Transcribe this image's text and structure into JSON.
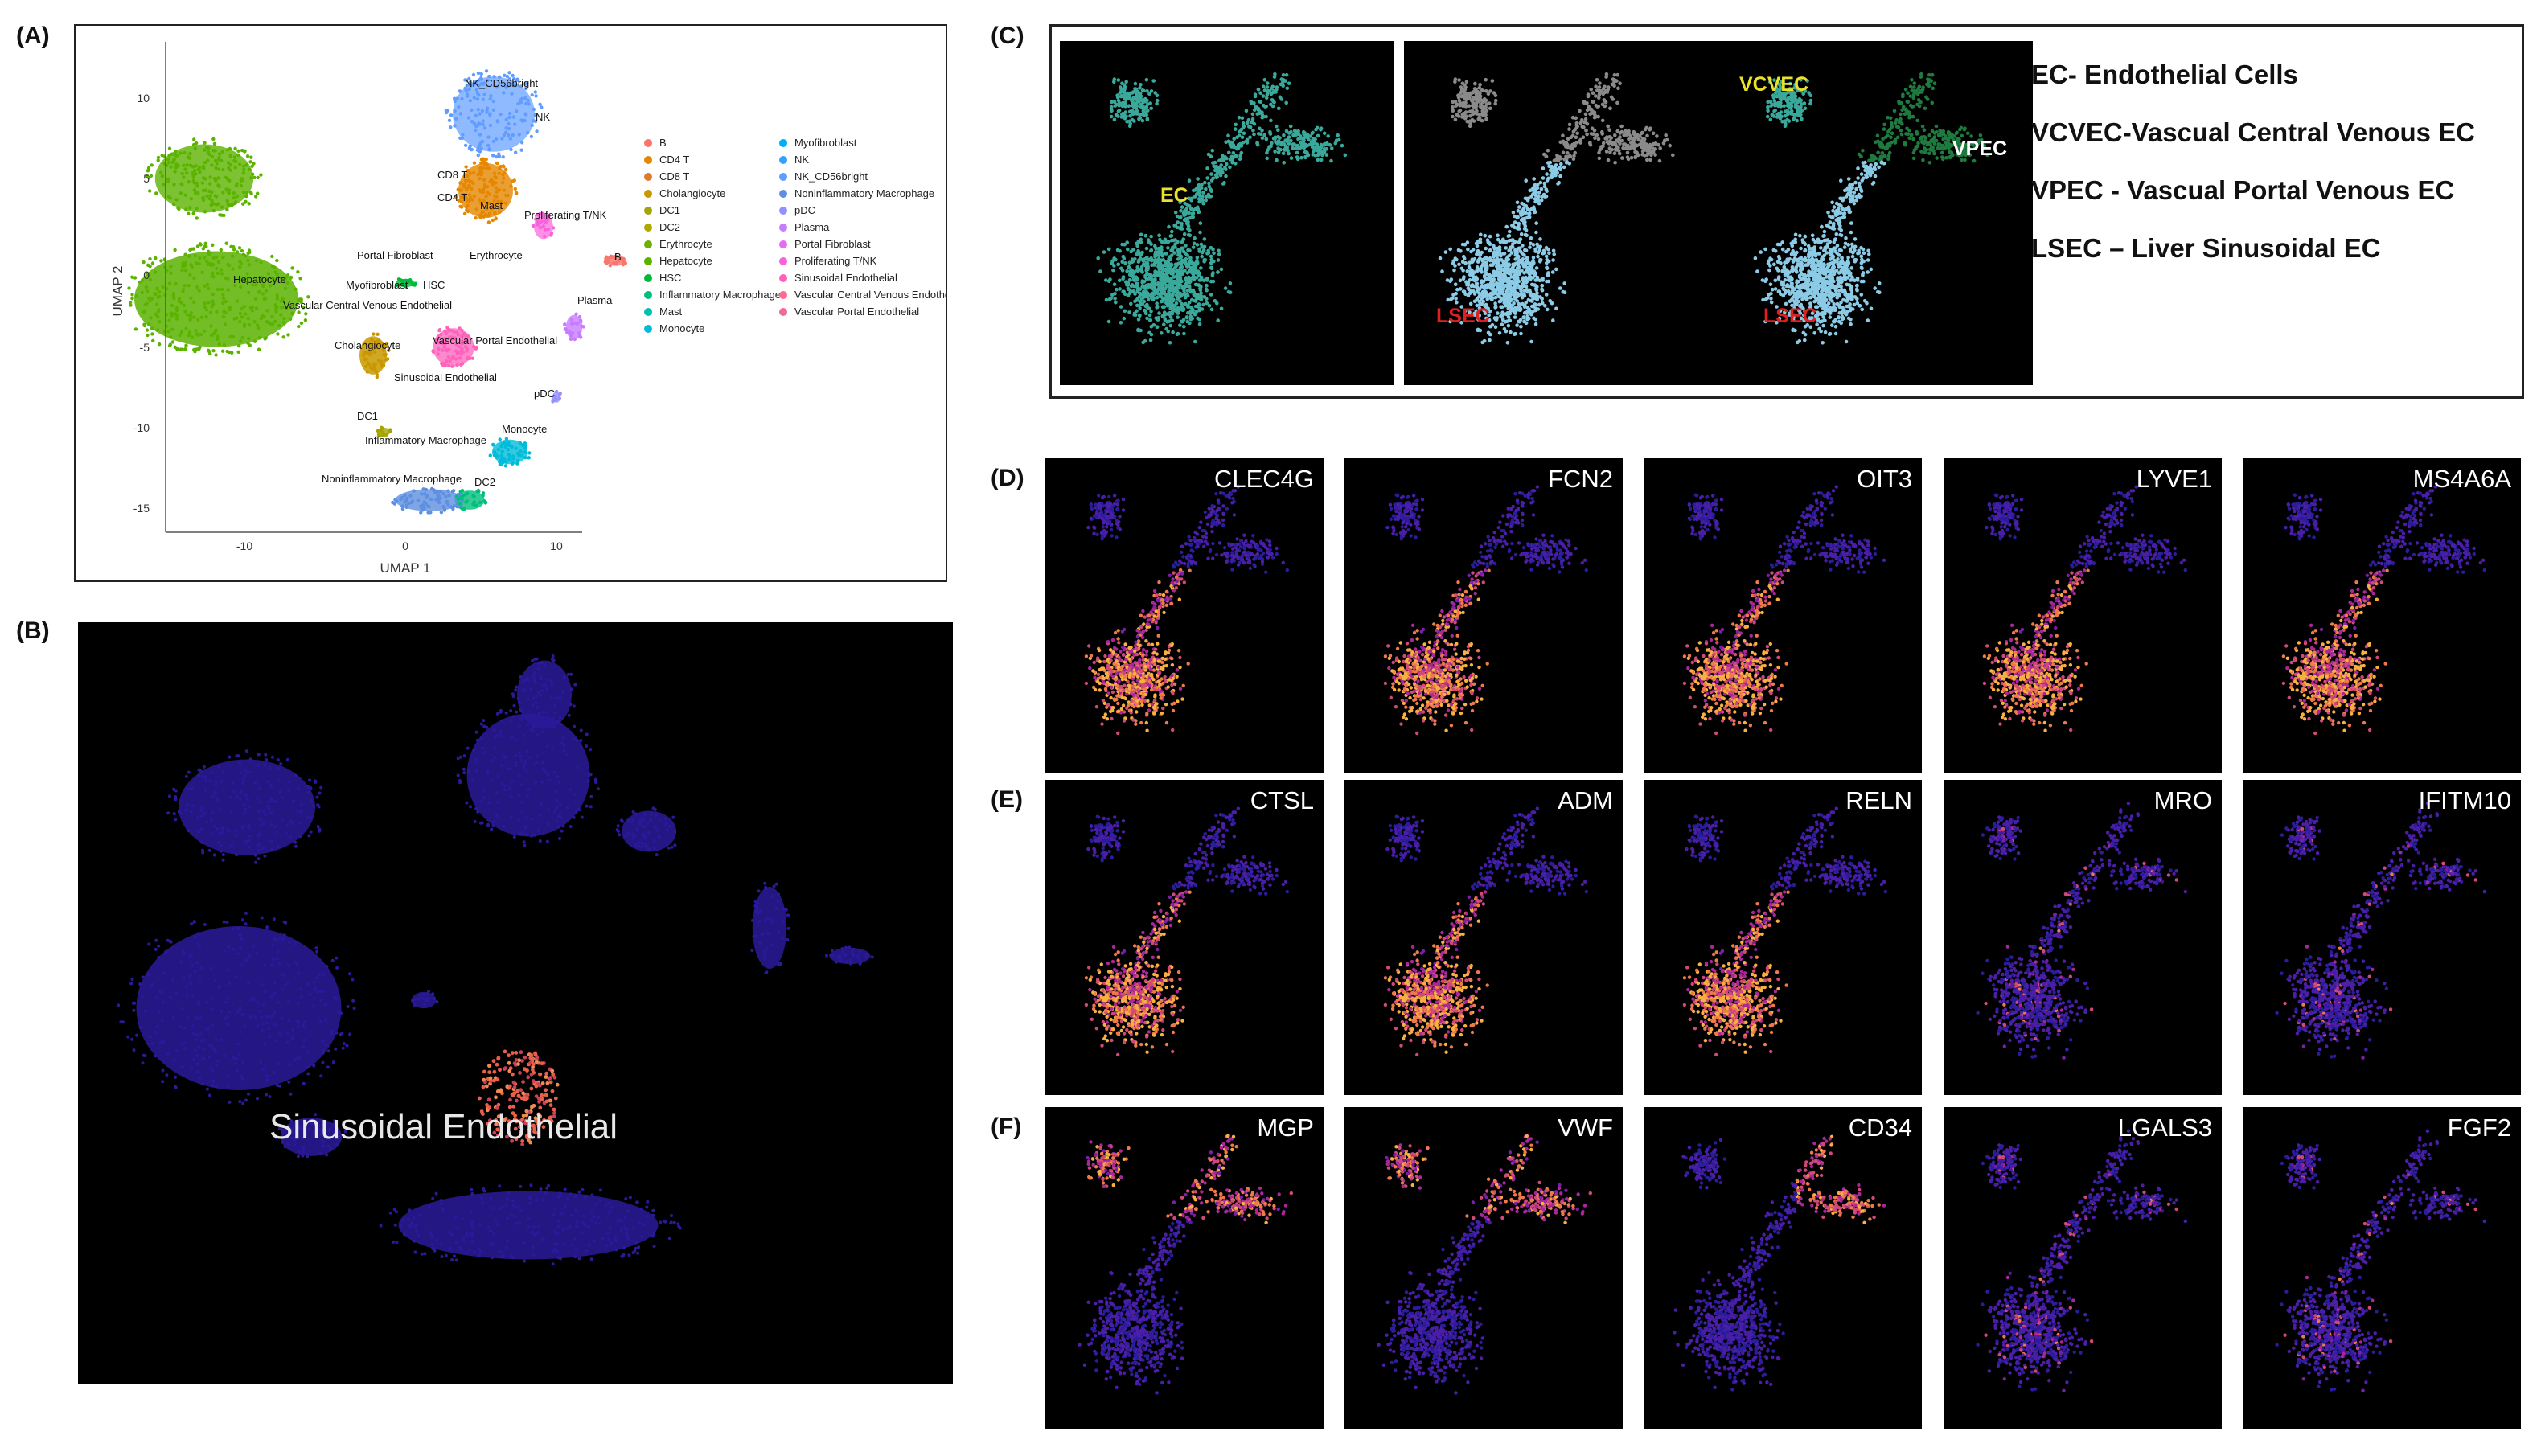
{
  "figure": {
    "panel_labels": [
      "(A)",
      "(B)",
      "(C)",
      "(D)",
      "(E)",
      "(F)"
    ]
  },
  "panelA": {
    "xlabel": "UMAP 1",
    "ylabel": "UMAP 2",
    "x_ticks": [
      "-10",
      "0",
      "10"
    ],
    "y_ticks": [
      "10",
      "5",
      "0",
      "-5",
      "-10",
      "-15"
    ],
    "cluster_labels": [
      "NK_CD56bright",
      "NK",
      "CD8 T",
      "CD4 T",
      "Mast",
      "Proliferating T/NK",
      "Portal Fibroblast",
      "Erythrocyte",
      "Myofibroblast",
      "HSC",
      "Hepatocyte",
      "Vascular Central Venous Endothelial",
      "Cholangiocyte",
      "Vascular Portal Endothelial",
      "Sinusoidal Endothelial",
      "DC1",
      "Inflammatory Macrophage",
      "Monocyte",
      "Noninflammatory Macrophage",
      "DC2",
      "pDC",
      "Plasma",
      "B"
    ],
    "legend_col1": [
      {
        "label": "B",
        "color": "#f8766d"
      },
      {
        "label": "CD4 T",
        "color": "#e58700"
      },
      {
        "label": "CD8 T",
        "color": "#e07b2c"
      },
      {
        "label": "Cholangiocyte",
        "color": "#c99800"
      },
      {
        "label": "DC1",
        "color": "#a3a500"
      },
      {
        "label": "DC2",
        "color": "#b0a800"
      },
      {
        "label": "Erythrocyte",
        "color": "#6bb100"
      },
      {
        "label": "Hepatocyte",
        "color": "#5bb300"
      },
      {
        "label": "HSC",
        "color": "#00ba38"
      },
      {
        "label": "Inflammatory Macrophage",
        "color": "#00bf7d"
      },
      {
        "label": "Mast",
        "color": "#00c0af"
      },
      {
        "label": "Monocyte",
        "color": "#00bcd8"
      }
    ],
    "legend_col2": [
      {
        "label": "Myofibroblast",
        "color": "#00b0f6"
      },
      {
        "label": "NK",
        "color": "#35a2ff"
      },
      {
        "label": "NK_CD56bright",
        "color": "#619cff"
      },
      {
        "label": "Noninflammatory Macrophage",
        "color": "#5e8fe0"
      },
      {
        "label": "pDC",
        "color": "#9590ff"
      },
      {
        "label": "Plasma",
        "color": "#c77cff"
      },
      {
        "label": "Portal Fibroblast",
        "color": "#e76bf3"
      },
      {
        "label": "Proliferating T/NK",
        "color": "#fa62db"
      },
      {
        "label": "Sinusoidal Endothelial",
        "color": "#ff62bc"
      },
      {
        "label": "Vascular Central Venous Endothelial",
        "color": "#ff6c91"
      },
      {
        "label": "Vascular Portal Endothelial",
        "color": "#f06a9a"
      }
    ]
  },
  "panelB": {
    "label": "Sinusoidal Endothelial"
  },
  "panelC": {
    "labels": {
      "ec": "EC",
      "lsec": "LSEC",
      "vcvec": "VCVEC",
      "vpec": "VPEC"
    },
    "colors": {
      "teal": "#3aa89a",
      "grey": "#8a8a8a",
      "lightblue": "#8ccbe6",
      "green": "#1e7a3e",
      "yellow": "#e8e22a",
      "red": "#e02020"
    },
    "legend": [
      "EC- Endothelial Cells",
      "VCVEC-Vascual Central Venous EC",
      "VPEC - Vascual Portal Venous EC",
      "LSEC – Liver Sinusoidal EC"
    ]
  },
  "genes": {
    "D": [
      "CLEC4G",
      "FCN2",
      "OIT3",
      "LYVE1",
      "MS4A6A"
    ],
    "E": [
      "CTSL",
      "ADM",
      "RELN",
      "MRO",
      "IFITM10"
    ],
    "F": [
      "MGP",
      "VWF",
      "CD34",
      "LGALS3",
      "FGF2"
    ]
  },
  "expression_pattern": {
    "D": [
      "lsec",
      "lsec",
      "lsec",
      "lsec",
      "lsec"
    ],
    "E": [
      "lsec",
      "lsec",
      "lsec",
      "weak",
      "weak"
    ],
    "F": [
      "vessel",
      "vessel",
      "vpec",
      "weak",
      "weak"
    ]
  }
}
